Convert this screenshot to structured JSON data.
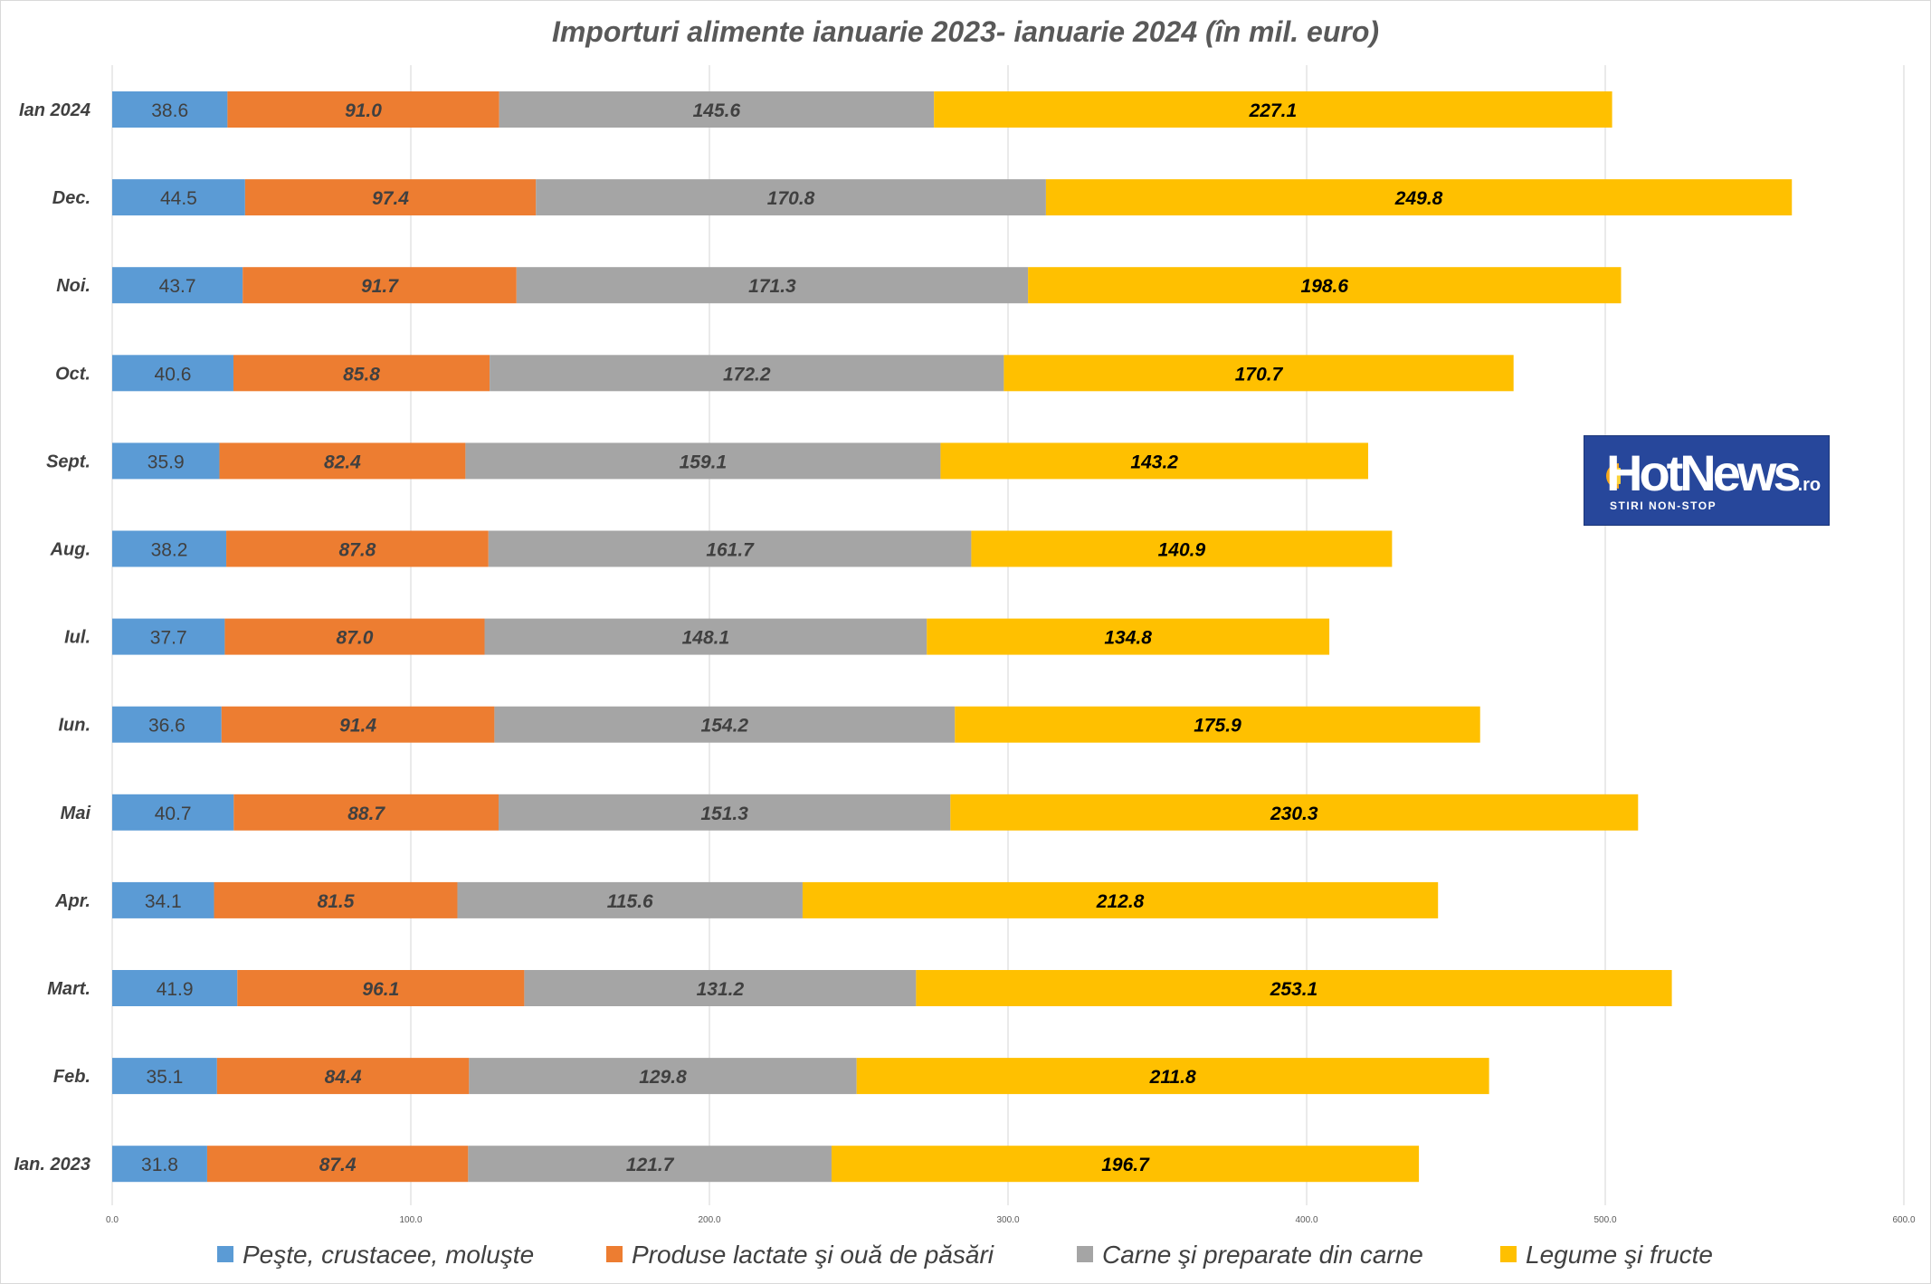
{
  "chart_data": {
    "type": "bar",
    "orientation": "horizontal",
    "stacked": true,
    "title": "Importuri alimente ianuarie 2023- ianuarie 2024 (în mil. euro)",
    "categories": [
      "Ian 2024",
      "Dec.",
      "Noi.",
      "Oct.",
      "Sept.",
      "Aug.",
      "Iul.",
      "Iun.",
      "Mai",
      "Apr.",
      "Mart.",
      "Feb.",
      "Ian. 2023"
    ],
    "series": [
      {
        "name": "Peşte, crustacee, moluşte",
        "color": "#5b9bd5",
        "values": [
          38.6,
          44.5,
          43.7,
          40.6,
          35.9,
          38.2,
          37.7,
          36.6,
          40.7,
          34.1,
          41.9,
          35.1,
          31.8
        ]
      },
      {
        "name": "Produse lactate şi ouă de păsări",
        "color": "#ed7d31",
        "values": [
          91.0,
          97.4,
          91.7,
          85.8,
          82.4,
          87.8,
          87.0,
          91.4,
          88.7,
          81.5,
          96.1,
          84.4,
          87.4
        ]
      },
      {
        "name": "Carne şi preparate din carne",
        "color": "#a5a5a5",
        "values": [
          145.6,
          170.8,
          171.3,
          172.2,
          159.1,
          161.7,
          148.1,
          154.2,
          151.3,
          115.6,
          131.2,
          129.8,
          121.7
        ]
      },
      {
        "name": "Legume şi fructe",
        "color": "#ffc000",
        "values": [
          227.1,
          249.8,
          198.6,
          170.7,
          143.2,
          140.9,
          134.8,
          175.9,
          230.3,
          212.8,
          253.1,
          211.8,
          196.7
        ]
      }
    ],
    "xlim": [
      0,
      600
    ],
    "xticks": [
      "0.0",
      "100.0",
      "200.0",
      "300.0",
      "400.0",
      "500.0",
      "600.0"
    ],
    "grid": true,
    "legend_position": "bottom"
  },
  "logo": {
    "brand": "HotNews",
    "suffix": ".ro",
    "tagline": "STIRI NON-STOP"
  }
}
